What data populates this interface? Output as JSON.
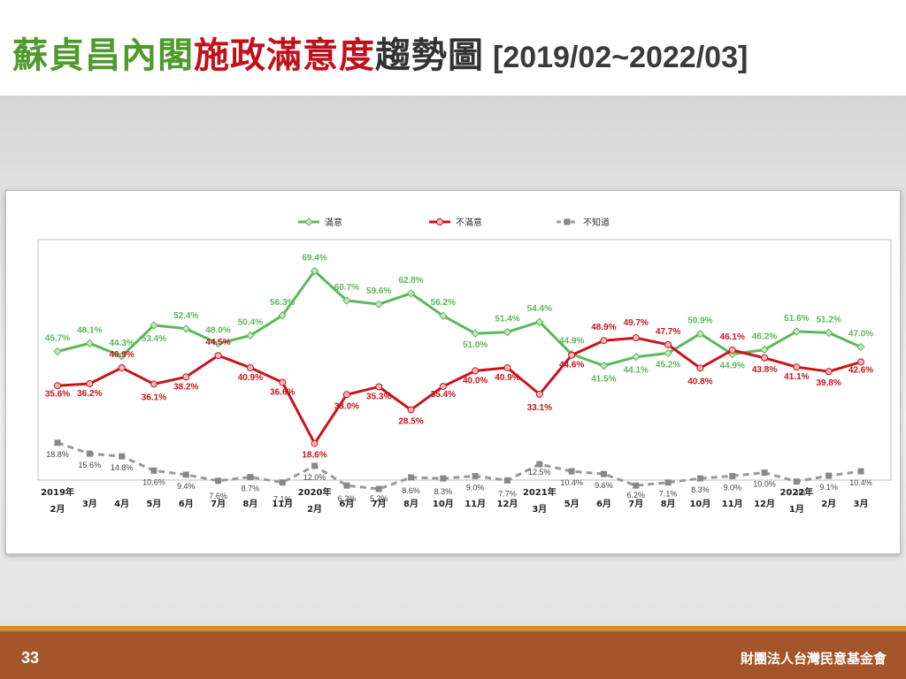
{
  "slide": {
    "title_part1": "蘇貞昌內閣",
    "title_part2": "施政滿意度",
    "title_part3": "趨勢圖",
    "date_range": "[2019/02~2022/03]",
    "page_number": "33",
    "organization": "財團法人台灣民意基金會"
  },
  "chart_data": {
    "type": "line",
    "categories": [
      [
        "2019年",
        "2月"
      ],
      [
        "",
        "3月"
      ],
      [
        "",
        "4月"
      ],
      [
        "",
        "5月"
      ],
      [
        "",
        "6月"
      ],
      [
        "",
        "7月"
      ],
      [
        "",
        "8月"
      ],
      [
        "",
        "11月"
      ],
      [
        "2020年",
        "2月"
      ],
      [
        "",
        "6月"
      ],
      [
        "",
        "7月"
      ],
      [
        "",
        "8月"
      ],
      [
        "",
        "10月"
      ],
      [
        "",
        "11月"
      ],
      [
        "",
        "12月"
      ],
      [
        "2021年",
        "3月"
      ],
      [
        "",
        "5月"
      ],
      [
        "",
        "6月"
      ],
      [
        "",
        "7月"
      ],
      [
        "",
        "8月"
      ],
      [
        "",
        "10月"
      ],
      [
        "",
        "11月"
      ],
      [
        "",
        "12月"
      ],
      [
        "2022年",
        "1月"
      ],
      [
        "",
        "2月"
      ],
      [
        "",
        "3月"
      ]
    ],
    "ylim": [
      0,
      75
    ],
    "legend_position": "top",
    "series": [
      {
        "name": "滿意",
        "color": "#5cb85c",
        "line_style": "solid",
        "marker": "diamond",
        "values": [
          45.7,
          48.1,
          44.3,
          53.4,
          52.4,
          48.0,
          50.4,
          56.3,
          69.4,
          60.7,
          59.6,
          62.8,
          56.2,
          51.0,
          51.4,
          54.4,
          44.9,
          41.5,
          44.1,
          45.2,
          50.9,
          44.9,
          46.2,
          51.6,
          51.2,
          47.0
        ],
        "labels": [
          "45.7%",
          "48.1%",
          "44.3%",
          "53.4%",
          "52.4%",
          "48.0%",
          "50.4%",
          "56.3%",
          "69.4%",
          "60.7%",
          "59.6%",
          "62.8%",
          "56.2%",
          "51.0%",
          "51.4%",
          "54.4%",
          "44.9%",
          "41.5%",
          "44.1%",
          "45.2%",
          "50.9%",
          "44.9%",
          "46.2%",
          "51.6%",
          "51.2%",
          "47.0%"
        ]
      },
      {
        "name": "不滿意",
        "color": "#c9141b",
        "line_style": "solid",
        "marker": "circle",
        "values": [
          35.6,
          36.2,
          40.9,
          36.1,
          38.2,
          44.5,
          40.9,
          36.6,
          18.6,
          33.0,
          35.3,
          28.5,
          35.4,
          40.0,
          40.9,
          33.1,
          44.6,
          48.9,
          49.7,
          47.7,
          40.8,
          46.1,
          43.8,
          41.1,
          39.8,
          42.6
        ],
        "labels": [
          "35.6%",
          "36.2%",
          "40.9%",
          "36.1%",
          "38.2%",
          "44.5%",
          "40.9%",
          "36.6%",
          "18.6%",
          "33.0%",
          "35.3%",
          "28.5%",
          "35.4%",
          "40.0%",
          "40.9%",
          "33.1%",
          "44.6%",
          "48.9%",
          "49.7%",
          "47.7%",
          "40.8%",
          "46.1%",
          "43.8%",
          "41.1%",
          "39.8%",
          "42.6%"
        ]
      },
      {
        "name": "不知道",
        "color": "#999999",
        "line_style": "dashed",
        "marker": "square",
        "values": [
          18.8,
          15.6,
          14.8,
          10.6,
          9.4,
          7.6,
          8.7,
          7.1,
          12.0,
          6.2,
          5.2,
          8.6,
          8.3,
          9.0,
          7.7,
          12.5,
          10.4,
          9.6,
          6.2,
          7.1,
          8.3,
          9.0,
          10.0,
          7.4,
          9.1,
          10.4
        ],
        "labels": [
          "18.8%",
          "15.6%",
          "14.8%",
          "10.6%",
          "9.4%",
          "7.6%",
          "8.7%",
          "7.1%",
          "12.0%",
          "6.2%",
          "5.2%",
          "8.6%",
          "8.3%",
          "9.0%",
          "7.7%",
          "12.5%",
          "10.4%",
          "9.6%",
          "6.2%",
          "7.1%",
          "8.3%",
          "9.0%",
          "10.0%",
          "7.4%",
          "9.1%",
          "10.4%"
        ]
      }
    ]
  }
}
